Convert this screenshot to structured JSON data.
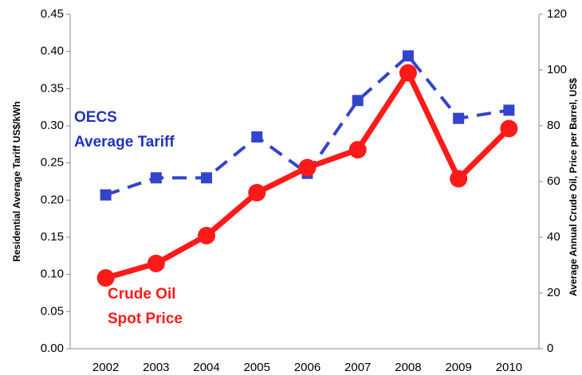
{
  "chart_data": {
    "type": "line",
    "ylabel": "Residential Average Tariff US$/kWh",
    "y2label": "Average Annual Crude Oil, Price per Barrel, US$",
    "categories": [
      "2002",
      "2003",
      "2004",
      "2005",
      "2006",
      "2007",
      "2008",
      "2009",
      "2010"
    ],
    "series": [
      {
        "name": "OECS Average Tariff",
        "color": "#3344cc",
        "values": [
          0.207,
          0.23,
          0.23,
          0.285,
          0.236,
          0.334,
          0.394,
          0.31,
          0.321
        ]
      },
      {
        "name": "Crude Oil Spot Price",
        "color": "#ff1a1a",
        "axis": "y2",
        "values": [
          25.4,
          30.6,
          40.6,
          56,
          65,
          71.4,
          99,
          61,
          79
        ]
      }
    ],
    "annotations": [
      {
        "lines": [
          "OECS",
          "Average  Tariff"
        ],
        "color": "#2233bb"
      },
      {
        "lines": [
          "Crude Oil",
          "Spot Price"
        ],
        "color": "#ff1a1a"
      }
    ],
    "ylim": [
      0,
      0.45
    ],
    "yticks": [
      {
        "value": 0,
        "label": "0.00"
      },
      {
        "value": 0.05,
        "label": "0.05"
      },
      {
        "value": 0.1,
        "label": "0.10"
      },
      {
        "value": 0.15,
        "label": "0.15"
      },
      {
        "value": 0.2,
        "label": "0.20"
      },
      {
        "value": 0.25,
        "label": "0.25"
      },
      {
        "value": 0.3,
        "label": "0.30"
      },
      {
        "value": 0.35,
        "label": "0.35"
      },
      {
        "value": 0.4,
        "label": "0.40"
      },
      {
        "value": 0.45,
        "label": "0.45"
      }
    ],
    "y2lim": [
      0,
      120
    ],
    "y2ticks": [
      0,
      20,
      40,
      60,
      80,
      100,
      120
    ]
  }
}
